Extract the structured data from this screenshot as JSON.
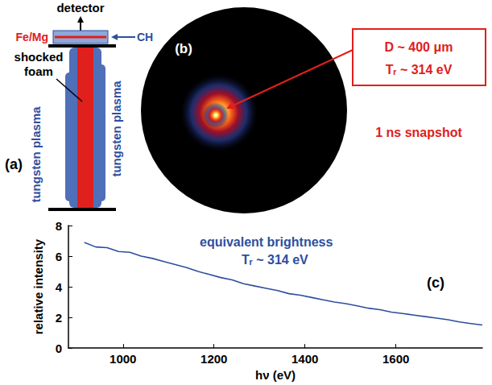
{
  "panel_a": {
    "panel_label": "(a)",
    "detector": "detector",
    "sample": "Fe/Mg",
    "tamper": "CH",
    "foam": "shocked foam",
    "plasma_left": "tungsten plasma",
    "plasma_right": "tungsten plasma"
  },
  "panel_b": {
    "panel_label": "(b)",
    "size": "D ~ 400 μm",
    "temperature": "Tᵣ ~ 314 eV",
    "caption": "1 ns snapshot"
  },
  "chart_data": {
    "type": "line",
    "panel_label": "(c)",
    "annotations": [
      "equivalent brightness",
      "Tᵣ ~ 314 eV"
    ],
    "x_label": "hν (eV)",
    "y_label": "relative intensity",
    "x": [
      915,
      940,
      965,
      990,
      1015,
      1040,
      1065,
      1090,
      1115,
      1140,
      1165,
      1190,
      1215,
      1240,
      1265,
      1290,
      1315,
      1340,
      1365,
      1390,
      1415,
      1440,
      1465,
      1490,
      1515,
      1540,
      1565,
      1590,
      1615,
      1640,
      1665,
      1690,
      1715,
      1740,
      1765,
      1790
    ],
    "values": [
      6.9,
      6.6,
      6.55,
      6.3,
      6.25,
      6.0,
      5.85,
      5.65,
      5.45,
      5.25,
      5.0,
      4.8,
      4.6,
      4.45,
      4.2,
      4.05,
      3.9,
      3.75,
      3.55,
      3.45,
      3.3,
      3.15,
      3.0,
      2.9,
      2.75,
      2.6,
      2.5,
      2.35,
      2.25,
      2.15,
      2.05,
      1.95,
      1.85,
      1.7,
      1.6,
      1.5
    ],
    "color": "#2d4f9e",
    "xlim": [
      880,
      1790
    ],
    "xticks": [
      1000,
      1200,
      1400,
      1600
    ],
    "ylim": [
      0,
      8
    ],
    "yticks": [
      0,
      2,
      4,
      6,
      8
    ],
    "grid": false
  }
}
